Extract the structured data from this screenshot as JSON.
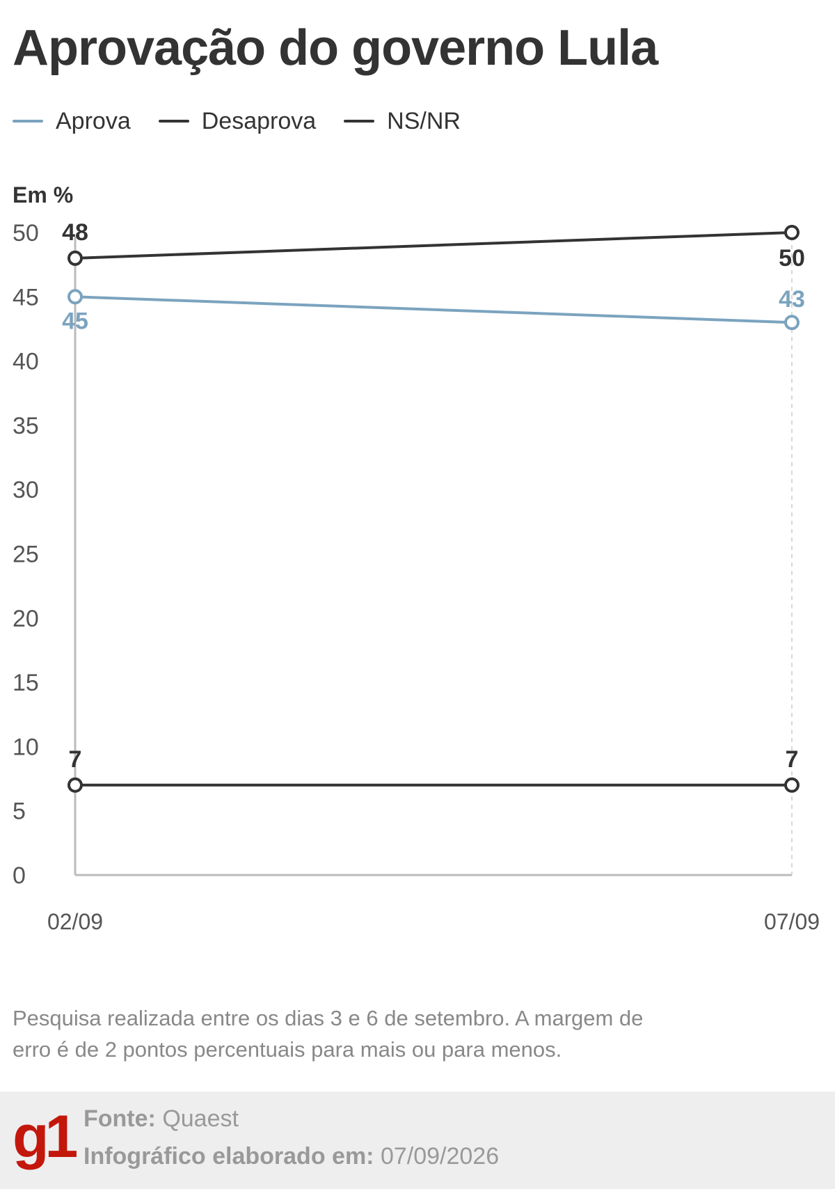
{
  "title": "Aprovação do governo Lula",
  "unit_label": "Em %",
  "legend": [
    {
      "label": "Aprova",
      "color": "#7ba3bf"
    },
    {
      "label": "Desaprova",
      "color": "#333333"
    },
    {
      "label": "NS/NR",
      "color": "#333333"
    }
  ],
  "chart_data": {
    "type": "line",
    "x": [
      "02/09",
      "07/09"
    ],
    "ylim": [
      0,
      50
    ],
    "yticks": [
      0,
      5,
      10,
      15,
      20,
      25,
      30,
      35,
      40,
      45,
      50
    ],
    "series": [
      {
        "name": "Aprova",
        "color": "#7ba3bf",
        "values": [
          45,
          43
        ],
        "labels": [
          "45",
          "43"
        ]
      },
      {
        "name": "Desaprova",
        "color": "#333333",
        "values": [
          48,
          50
        ],
        "labels": [
          "48",
          "50"
        ]
      },
      {
        "name": "NS/NR",
        "color": "#333333",
        "values": [
          7,
          7
        ],
        "labels": [
          "7",
          "7"
        ]
      }
    ],
    "grid": false
  },
  "note": "Pesquisa realizada entre os dias 3 e 6 de setembro. A margem de erro é de 2 pontos percentuais para mais ou para menos.",
  "footer": {
    "logo": "g1",
    "source_key": "Fonte:",
    "source_value": "Quaest",
    "date_key": "Infográfico elaborado em:",
    "date_value": "07/09/2026"
  }
}
